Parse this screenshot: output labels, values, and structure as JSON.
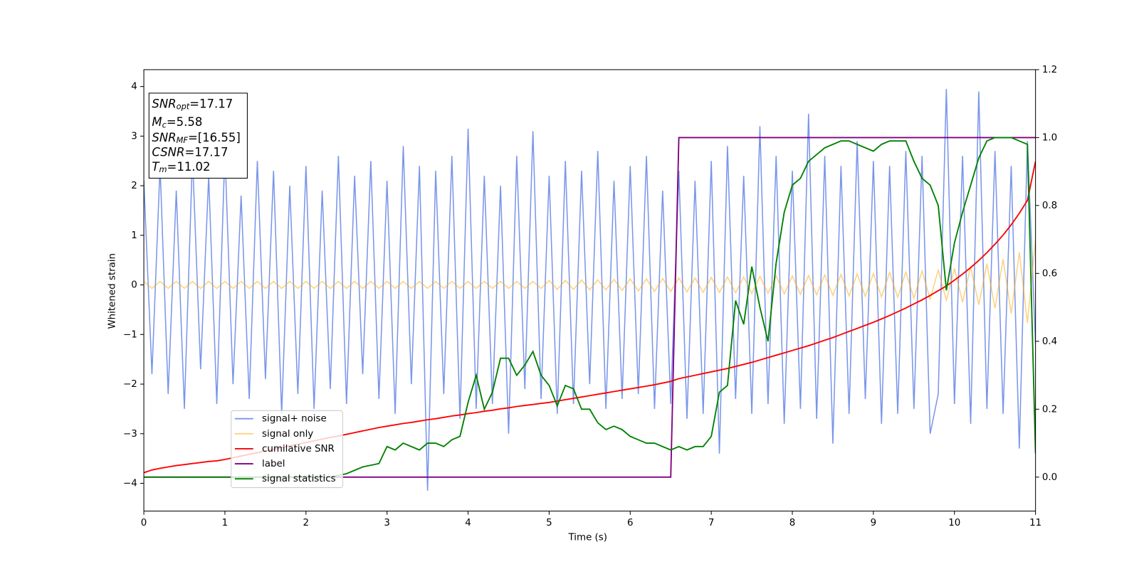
{
  "chart_data": {
    "type": "line",
    "xlabel": "Time (s)",
    "ylabel": "Whitened strain",
    "xlim": [
      0,
      11
    ],
    "xticks": [
      0,
      1,
      2,
      3,
      4,
      5,
      6,
      7,
      8,
      9,
      10,
      11
    ],
    "ylim": [
      -4.56,
      4.34
    ],
    "yticks": [
      {
        "value": -4,
        "label": "−4"
      },
      {
        "value": -3,
        "label": "−3"
      },
      {
        "value": -2,
        "label": "−2"
      },
      {
        "value": -1,
        "label": "−1"
      },
      0,
      1,
      2,
      3,
      4
    ],
    "y2lim": [
      -0.1,
      1.2
    ],
    "y2ticks": [
      {
        "value": 0,
        "label": "0.0"
      },
      {
        "value": 0.2,
        "label": "0.2"
      },
      {
        "value": 0.4,
        "label": "0.4"
      },
      {
        "value": 0.6,
        "label": "0.6"
      },
      {
        "value": 0.8,
        "label": "0.8"
      },
      {
        "value": 1,
        "label": "1.0"
      },
      {
        "value": 1.2,
        "label": "1.2"
      }
    ],
    "legend": "lower left",
    "annotations": [
      {
        "symbol": "SNR",
        "subscript": "opt",
        "text": "=17.17"
      },
      {
        "symbol": "M",
        "subscript": "c",
        "text": "=5.58"
      },
      {
        "symbol": "SNR",
        "subscript": "MF",
        "text": "=[16.55]"
      },
      {
        "symbol": "CSNR",
        "subscript": "",
        "text": "=17.17"
      },
      {
        "symbol": "T",
        "subscript": "m",
        "text": "=11.02"
      }
    ],
    "x": [
      0,
      0.1,
      0.2,
      0.3,
      0.4,
      0.5,
      0.6,
      0.7,
      0.8,
      0.9,
      1,
      1.1,
      1.2,
      1.3,
      1.4,
      1.5,
      1.6,
      1.7,
      1.8,
      1.9,
      2,
      2.1,
      2.2,
      2.3,
      2.4,
      2.5,
      2.6,
      2.7,
      2.8,
      2.9,
      3,
      3.1,
      3.2,
      3.3,
      3.4,
      3.5,
      3.6,
      3.7,
      3.8,
      3.9,
      4,
      4.1,
      4.2,
      4.3,
      4.4,
      4.5,
      4.6,
      4.7,
      4.8,
      4.9,
      5,
      5.1,
      5.2,
      5.3,
      5.4,
      5.5,
      5.6,
      5.7,
      5.8,
      5.9,
      6,
      6.1,
      6.2,
      6.3,
      6.4,
      6.5,
      6.6,
      6.7,
      6.8,
      6.9,
      7,
      7.1,
      7.2,
      7.3,
      7.4,
      7.5,
      7.6,
      7.7,
      7.8,
      7.9,
      8,
      8.1,
      8.2,
      8.3,
      8.4,
      8.5,
      8.6,
      8.7,
      8.8,
      8.9,
      9,
      9.1,
      9.2,
      9.3,
      9.4,
      9.5,
      9.6,
      9.7,
      9.8,
      9.9,
      10,
      10.1,
      10.2,
      10.3,
      10.4,
      10.5,
      10.6,
      10.7,
      10.8,
      10.9,
      11
    ],
    "series": [
      {
        "name": "signal+ noise",
        "color": "#4169e1",
        "alpha": 0.7,
        "values": [
          2.1,
          -1.8,
          2.4,
          -2.2,
          1.9,
          -2.5,
          2.6,
          -1.7,
          2.2,
          -2.4,
          2.7,
          -2.0,
          1.8,
          -2.3,
          2.5,
          -1.9,
          2.3,
          -2.6,
          2.0,
          -2.2,
          2.4,
          -2.5,
          1.9,
          -2.1,
          2.6,
          -2.4,
          2.2,
          -1.8,
          2.5,
          -2.3,
          2.1,
          -2.6,
          2.8,
          -2.0,
          2.4,
          -4.15,
          2.3,
          -2.2,
          2.6,
          -2.7,
          3.15,
          -2.5,
          2.2,
          -2.4,
          2.0,
          -3.0,
          2.6,
          -2.1,
          3.1,
          -2.3,
          2.2,
          -2.6,
          2.5,
          -2.4,
          2.3,
          -2.0,
          2.7,
          -2.5,
          2.1,
          -2.3,
          2.4,
          -2.2,
          2.6,
          -2.5,
          1.9,
          -2.4,
          2.3,
          -2.7,
          2.1,
          -2.6,
          2.5,
          -3.4,
          2.8,
          -2.3,
          2.2,
          -2.6,
          3.2,
          -2.4,
          2.6,
          -2.8,
          2.3,
          -2.5,
          3.45,
          -2.7,
          2.6,
          -3.2,
          2.4,
          -2.6,
          2.9,
          -2.3,
          2.5,
          -2.8,
          2.4,
          -2.6,
          2.7,
          -2.5,
          2.6,
          -3.0,
          -2.2,
          3.95,
          -2.4,
          2.6,
          -2.8,
          3.9,
          -2.5,
          2.7,
          -2.6,
          2.4,
          -3.3,
          2.9,
          -1.2
        ]
      },
      {
        "name": "signal only",
        "color": "#ffa500",
        "alpha": 0.5,
        "values": [
          0.07,
          -0.07,
          0.07,
          -0.07,
          0.07,
          -0.07,
          0.07,
          -0.07,
          0.07,
          -0.07,
          0.07,
          -0.07,
          0.07,
          -0.07,
          0.07,
          -0.07,
          0.07,
          -0.07,
          0.07,
          -0.07,
          0.07,
          -0.07,
          0.07,
          -0.07,
          0.07,
          -0.07,
          0.07,
          -0.07,
          0.07,
          -0.07,
          0.07,
          -0.07,
          0.07,
          -0.07,
          0.07,
          -0.07,
          0.07,
          -0.07,
          0.07,
          -0.07,
          0.07,
          -0.07,
          0.07,
          -0.07,
          0.07,
          -0.07,
          0.07,
          -0.07,
          0.07,
          -0.07,
          0.09,
          -0.09,
          0.09,
          -0.09,
          0.1,
          -0.1,
          0.1,
          -0.1,
          0.11,
          -0.11,
          0.12,
          -0.12,
          0.12,
          -0.13,
          0.13,
          -0.13,
          0.14,
          -0.14,
          0.14,
          -0.15,
          0.15,
          -0.15,
          0.16,
          -0.16,
          0.16,
          -0.17,
          0.17,
          -0.17,
          0.18,
          -0.18,
          0.18,
          -0.19,
          0.19,
          -0.2,
          0.2,
          -0.21,
          0.21,
          -0.22,
          0.22,
          -0.23,
          0.23,
          -0.24,
          0.25,
          -0.25,
          0.26,
          -0.27,
          0.28,
          -0.29,
          0.3,
          -0.31,
          0.33,
          -0.35,
          0.37,
          -0.4,
          0.43,
          -0.47,
          0.52,
          -0.58,
          0.66,
          -0.77,
          0.92
        ]
      },
      {
        "name": "cumilative SNR",
        "color": "#ff0000",
        "axis": "y2",
        "values": [
          0.013,
          0.021,
          0.026,
          0.03,
          0.034,
          0.037,
          0.04,
          0.043,
          0.046,
          0.048,
          0.052,
          0.057,
          0.062,
          0.067,
          0.072,
          0.077,
          0.082,
          0.087,
          0.092,
          0.097,
          0.102,
          0.107,
          0.112,
          0.117,
          0.121,
          0.126,
          0.131,
          0.136,
          0.141,
          0.146,
          0.15,
          0.154,
          0.158,
          0.161,
          0.165,
          0.169,
          0.172,
          0.176,
          0.18,
          0.183,
          0.187,
          0.19,
          0.194,
          0.197,
          0.201,
          0.204,
          0.208,
          0.211,
          0.214,
          0.217,
          0.22,
          0.224,
          0.228,
          0.232,
          0.236,
          0.24,
          0.244,
          0.248,
          0.252,
          0.256,
          0.26,
          0.264,
          0.268,
          0.272,
          0.277,
          0.282,
          0.29,
          0.295,
          0.3,
          0.305,
          0.31,
          0.315,
          0.32,
          0.326,
          0.332,
          0.338,
          0.345,
          0.352,
          0.359,
          0.366,
          0.373,
          0.38,
          0.387,
          0.395,
          0.403,
          0.411,
          0.42,
          0.429,
          0.438,
          0.447,
          0.456,
          0.466,
          0.476,
          0.487,
          0.498,
          0.51,
          0.522,
          0.535,
          0.549,
          0.563,
          0.58,
          0.598,
          0.617,
          0.638,
          0.661,
          0.686,
          0.713,
          0.743,
          0.777,
          0.815,
          0.93
        ]
      },
      {
        "name": "label",
        "color": "#800080",
        "axis": "y2",
        "values": [
          0,
          0,
          0,
          0,
          0,
          0,
          0,
          0,
          0,
          0,
          0,
          0,
          0,
          0,
          0,
          0,
          0,
          0,
          0,
          0,
          0,
          0,
          0,
          0,
          0,
          0,
          0,
          0,
          0,
          0,
          0,
          0,
          0,
          0,
          0,
          0,
          0,
          0,
          0,
          0,
          0,
          0,
          0,
          0,
          0,
          0,
          0,
          0,
          0,
          0,
          0,
          0,
          0,
          0,
          0,
          0,
          0,
          0,
          0,
          0,
          0,
          0,
          0,
          0,
          0,
          0,
          1,
          1,
          1,
          1,
          1,
          1,
          1,
          1,
          1,
          1,
          1,
          1,
          1,
          1,
          1,
          1,
          1,
          1,
          1,
          1,
          1,
          1,
          1,
          1,
          1,
          1,
          1,
          1,
          1,
          1,
          1,
          1,
          1,
          1,
          1,
          1,
          1,
          1,
          1,
          1,
          1,
          1,
          1,
          1,
          1
        ]
      },
      {
        "name": "signal statistics",
        "color": "#008000",
        "axis": "y2",
        "values": [
          0,
          0,
          0,
          0,
          0,
          0,
          0,
          0,
          0,
          0,
          0,
          0,
          0,
          0,
          0,
          0,
          0,
          0,
          0,
          0,
          0,
          0,
          0,
          0,
          0.005,
          0.01,
          0.02,
          0.03,
          0.035,
          0.04,
          0.09,
          0.08,
          0.1,
          0.09,
          0.08,
          0.1,
          0.1,
          0.09,
          0.11,
          0.12,
          0.22,
          0.3,
          0.2,
          0.25,
          0.35,
          0.35,
          0.3,
          0.33,
          0.37,
          0.3,
          0.27,
          0.21,
          0.27,
          0.26,
          0.2,
          0.2,
          0.16,
          0.14,
          0.15,
          0.14,
          0.12,
          0.11,
          0.1,
          0.1,
          0.09,
          0.08,
          0.09,
          0.08,
          0.09,
          0.09,
          0.12,
          0.25,
          0.27,
          0.52,
          0.45,
          0.62,
          0.5,
          0.4,
          0.63,
          0.78,
          0.86,
          0.88,
          0.93,
          0.95,
          0.97,
          0.98,
          0.99,
          0.99,
          0.98,
          0.97,
          0.96,
          0.98,
          0.99,
          0.99,
          0.99,
          0.93,
          0.88,
          0.86,
          0.8,
          0.55,
          0.69,
          0.78,
          0.86,
          0.94,
          0.99,
          1.0,
          1.0,
          1.0,
          0.99,
          0.98,
          0.07
        ]
      }
    ]
  }
}
